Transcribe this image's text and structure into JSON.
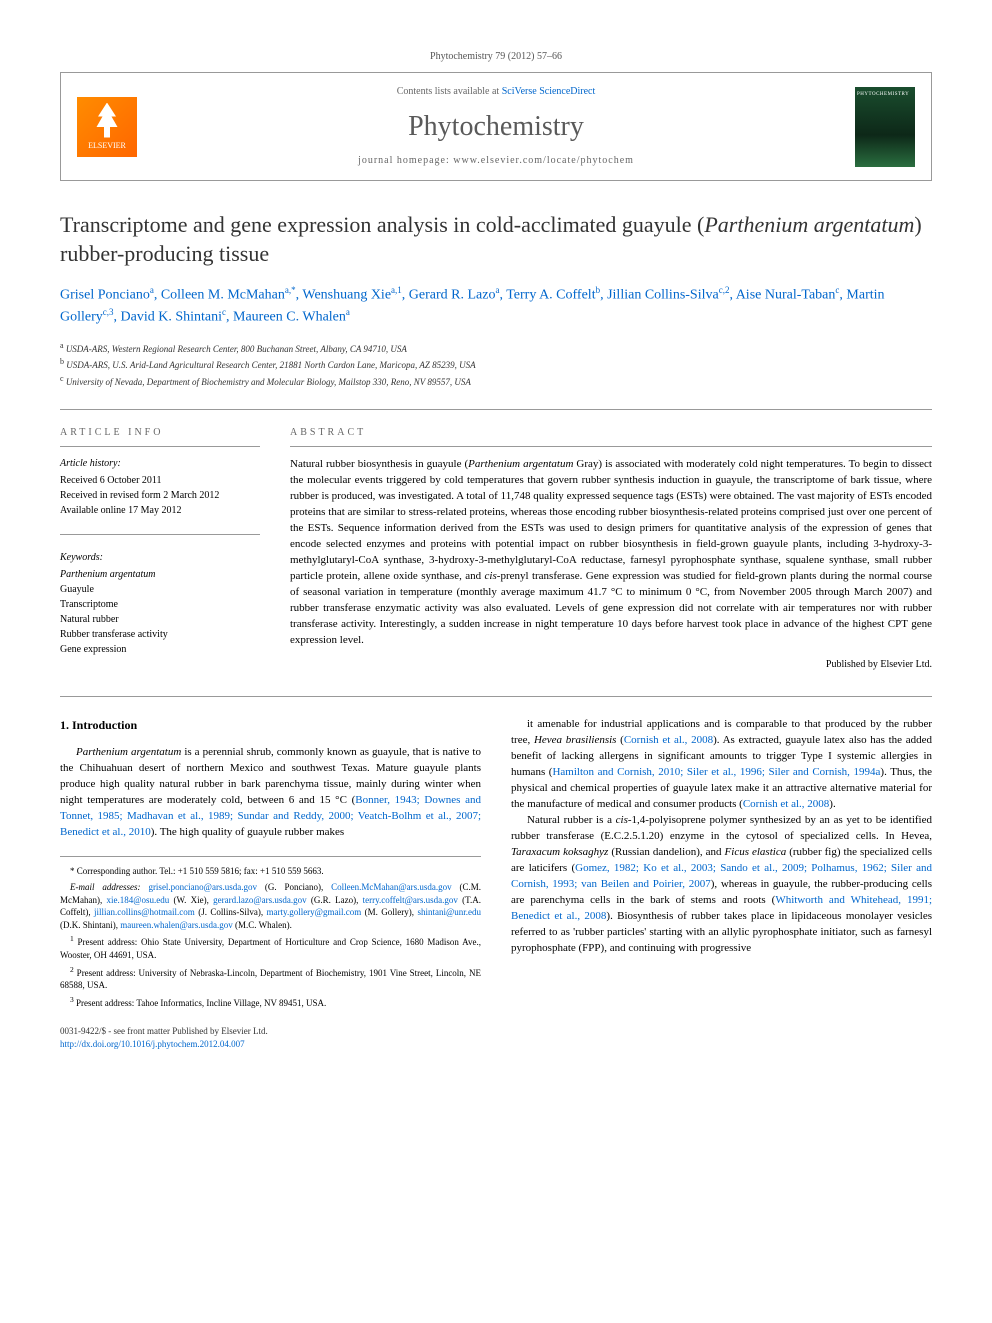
{
  "journal_ref": "Phytochemistry 79 (2012) 57–66",
  "header": {
    "contents_prefix": "Contents lists available at ",
    "contents_link": "SciVerse ScienceDirect",
    "journal_name": "Phytochemistry",
    "homepage_prefix": "journal homepage: ",
    "homepage_url": "www.elsevier.com/locate/phytochem",
    "publisher_logo": "ELSEVIER"
  },
  "title_part1": "Transcriptome and gene expression analysis in cold-acclimated guayule (",
  "title_italic": "Parthenium argentatum",
  "title_part2": ") rubber-producing tissue",
  "authors_html": "Grisel Ponciano<sup>a</sup>, Colleen M. McMahan<sup>a,*</sup>, Wenshuang Xie<sup>a,1</sup>, Gerard R. Lazo<sup>a</sup>, Terry A. Coffelt<sup>b</sup>, Jillian Collins-Silva<sup>c,2</sup>, Aise Nural-Taban<sup>c</sup>, Martin Gollery<sup>c,3</sup>, David K. Shintani<sup>c</sup>, Maureen C. Whalen<sup>a</sup>",
  "affiliations": [
    "<sup>a</sup> USDA-ARS, Western Regional Research Center, 800 Buchanan Street, Albany, CA 94710, USA",
    "<sup>b</sup> USDA-ARS, U.S. Arid-Land Agricultural Research Center, 21881 North Cardon Lane, Maricopa, AZ 85239, USA",
    "<sup>c</sup> University of Nevada, Department of Biochemistry and Molecular Biology, Mailstop 330, Reno, NV 89557, USA"
  ],
  "article_info": {
    "label": "ARTICLE INFO",
    "history_label": "Article history:",
    "history": [
      "Received 6 October 2011",
      "Received in revised form 2 March 2012",
      "Available online 17 May 2012"
    ],
    "keywords_label": "Keywords:",
    "keywords": [
      {
        "text": "Parthenium argentatum",
        "italic": true
      },
      {
        "text": "Guayule",
        "italic": false
      },
      {
        "text": "Transcriptome",
        "italic": false
      },
      {
        "text": "Natural rubber",
        "italic": false
      },
      {
        "text": "Rubber transferase activity",
        "italic": false
      },
      {
        "text": "Gene expression",
        "italic": false
      }
    ]
  },
  "abstract": {
    "label": "ABSTRACT",
    "text": "Natural rubber biosynthesis in guayule (<span class=\"italic\">Parthenium argentatum</span> Gray) is associated with moderately cold night temperatures. To begin to dissect the molecular events triggered by cold temperatures that govern rubber synthesis induction in guayule, the transcriptome of bark tissue, where rubber is produced, was investigated. A total of 11,748 quality expressed sequence tags (ESTs) were obtained. The vast majority of ESTs encoded proteins that are similar to stress-related proteins, whereas those encoding rubber biosynthesis-related proteins comprised just over one percent of the ESTs. Sequence information derived from the ESTs was used to design primers for quantitative analysis of the expression of genes that encode selected enzymes and proteins with potential impact on rubber biosynthesis in field-grown guayule plants, including 3-hydroxy-3-methylglutaryl-CoA synthase, 3-hydroxy-3-methylglutaryl-CoA reductase, farnesyl pyrophosphate synthase, squalene synthase, small rubber particle protein, allene oxide synthase, and <span class=\"italic\">cis</span>-prenyl transferase. Gene expression was studied for field-grown plants during the normal course of seasonal variation in temperature (monthly average maximum 41.7 °C to minimum 0 °C, from November 2005 through March 2007) and rubber transferase enzymatic activity was also evaluated. Levels of gene expression did not correlate with air temperatures nor with rubber transferase activity. Interestingly, a sudden increase in night temperature 10 days before harvest took place in advance of the highest CPT gene expression level.",
    "publisher": "Published by Elsevier Ltd."
  },
  "body": {
    "section_heading": "1. Introduction",
    "col1_p1": "<span class=\"italic\">Parthenium argentatum</span> is a perennial shrub, commonly known as guayule, that is native to the Chihuahuan desert of northern Mexico and southwest Texas. Mature guayule plants produce high quality natural rubber in bark parenchyma tissue, mainly during winter when night temperatures are moderately cold, between 6 and 15 °C (<a>Bonner, 1943; Downes and Tonnet, 1985; Madhavan et al., 1989; Sundar and Reddy, 2000; Veatch-Bolhm et al., 2007; Benedict et al., 2010</a>). The high quality of guayule rubber makes",
    "col2_p1": "it amenable for industrial applications and is comparable to that produced by the rubber tree, <span class=\"italic\">Hevea brasiliensis</span> (<a>Cornish et al., 2008</a>). As extracted, guayule latex also has the added benefit of lacking allergens in significant amounts to trigger Type I systemic allergies in humans (<a>Hamilton and Cornish, 2010; Siler et al., 1996; Siler and Cornish, 1994a</a>). Thus, the physical and chemical properties of guayule latex make it an attractive alternative material for the manufacture of medical and consumer products (<a>Cornish et al., 2008</a>).",
    "col2_p2": "Natural rubber is a <span class=\"italic\">cis</span>-1,4-polyisoprene polymer synthesized by an as yet to be identified rubber transferase (E.C.2.5.1.20) enzyme in the cytosol of specialized cells. In Hevea, <span class=\"italic\">Taraxacum koksaghyz</span> (Russian dandelion), and <span class=\"italic\">Ficus elastica</span> (rubber fig) the specialized cells are laticifers (<a>Gomez, 1982; Ko et al., 2003; Sando et al., 2009; Polhamus, 1962; Siler and Cornish, 1993; van Beilen and Poirier, 2007</a>), whereas in guayule, the rubber-producing cells are parenchyma cells in the bark of stems and roots (<a>Whitworth and Whitehead, 1991; Benedict et al., 2008</a>). Biosynthesis of rubber takes place in lipidaceous monolayer vesicles referred to as 'rubber particles' starting with an allylic pyrophosphate initiator, such as farnesyl pyrophosphate (FPP), and continuing with progressive"
  },
  "footnotes": {
    "corresponding": "* Corresponding author. Tel.: +1 510 559 5816; fax: +1 510 559 5663.",
    "emails_label": "E-mail addresses:",
    "emails": " <a>grisel.ponciano@ars.usda.gov</a> (G. Ponciano), <a>Colleen.McMahan@ars.usda.gov</a> (C.M. McMahan), <a>xie.184@osu.edu</a> (W. Xie), <a>gerard.lazo@ars.usda.gov</a> (G.R. Lazo), <a>terry.coffelt@ars.usda.gov</a> (T.A. Coffelt), <a>jillian.collins@hotmail.com</a> (J. Collins-Silva), <a>marty.gollery@gmail.com</a> (M. Gollery), <a>shintani@unr.edu</a> (D.K. Shintani), <a>maureen.whalen@ars.usda.gov</a> (M.C. Whalen).",
    "fn1": "<sup>1</sup> Present address: Ohio State University, Department of Horticulture and Crop Science, 1680 Madison Ave., Wooster, OH 44691, USA.",
    "fn2": "<sup>2</sup> Present address: University of Nebraska-Lincoln, Department of Biochemistry, 1901 Vine Street, Lincoln, NE 68588, USA.",
    "fn3": "<sup>3</sup> Present address: Tahoe Informatics, Incline Village, NV 89451, USA."
  },
  "footer": {
    "copyright": "0031-9422/$ - see front matter Published by Elsevier Ltd.",
    "doi": "http://dx.doi.org/10.1016/j.phytochem.2012.04.007"
  },
  "colors": {
    "link": "#0066cc",
    "text": "#000000",
    "muted": "#666666",
    "border": "#999999",
    "elsevier_orange": "#ff7700"
  },
  "typography": {
    "body_fontsize": 11,
    "title_fontsize": 22,
    "journal_name_fontsize": 28,
    "footnote_fontsize": 9,
    "font_family": "Georgia, Times New Roman, serif"
  }
}
